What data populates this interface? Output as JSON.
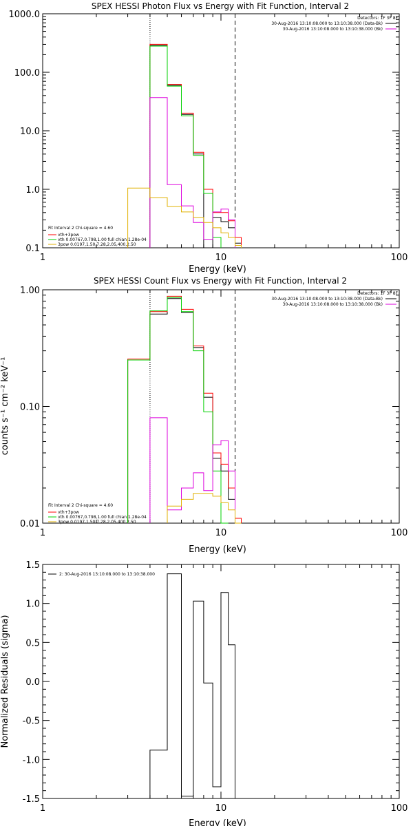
{
  "colors": {
    "black": "#000000",
    "red": "#ff0000",
    "green": "#00d000",
    "magenta": "#dd00dd",
    "yellow": "#e0b000"
  },
  "chart_data": [
    {
      "type": "line",
      "title": "SPEX HESSI Photon Flux vs Energy with Fit Function, Interval 2",
      "xlabel": "Energy (keV)",
      "ylabel": "",
      "xscale": "log",
      "yscale": "log",
      "xlim": [
        1,
        100
      ],
      "ylim": [
        0.1,
        1000
      ],
      "xticks": [
        "1",
        "10",
        "100"
      ],
      "yticks": [
        "1000.0",
        "100.0",
        "10.0",
        "1.0",
        "0.1"
      ],
      "detectors": "Detectors: 1F 3F 8F",
      "time_lines": [
        {
          "text": "30-Aug-2016 13:10:08.000 to 13:10:38.000 (Data-Bk)",
          "color": "black"
        },
        {
          "text": "30-Aug-2016 13:10:08.000 to 13:10:38.000 (Bk)",
          "color": "magenta"
        }
      ],
      "fit_header": "Fit Interval  2   Chi-square = 4.60",
      "legend": [
        {
          "text": "vth+3pow",
          "color": "red"
        },
        {
          "text": "vth 0.00767,0.798,1.00  full chian 1.28e-04",
          "color": "green"
        },
        {
          "text": "3pow 0.0197,1.50,7.28,2.05,400,2.50",
          "color": "yellow"
        }
      ],
      "vlines": [
        {
          "x": 4.0,
          "style": "dotted"
        },
        {
          "x": 12.0,
          "style": "dashed"
        }
      ],
      "edges": [
        3,
        4,
        5,
        6,
        7,
        8,
        9,
        10,
        11,
        12,
        13
      ],
      "series": [
        {
          "color": "black",
          "values": [
            null,
            290,
            60,
            19,
            4.0,
            null,
            0.33,
            0.28,
            0.22,
            0.12
          ]
        },
        {
          "color": "red",
          "values": [
            null,
            300,
            62,
            20,
            4.3,
            1.0,
            0.4,
            0.4,
            0.29,
            0.15,
            0.11
          ]
        },
        {
          "color": "green",
          "values": [
            null,
            280,
            58,
            18,
            3.8,
            0.85,
            0.15
          ]
        },
        {
          "color": "magenta",
          "values": [
            null,
            37,
            1.2,
            0.52,
            0.27,
            0.14,
            0.41,
            0.46,
            0.3
          ]
        },
        {
          "color": "yellow",
          "values": [
            1.05,
            0.72,
            0.51,
            0.41,
            0.33,
            0.27,
            0.22,
            0.18,
            0.15,
            0.11
          ]
        }
      ]
    },
    {
      "type": "line",
      "title": "SPEX HESSI Count Flux vs Energy with Fit Function, Interval 2",
      "xlabel": "Energy (keV)",
      "ylabel": "counts s⁻¹ cm⁻² keV⁻¹",
      "xscale": "log",
      "yscale": "log",
      "xlim": [
        1,
        100
      ],
      "ylim": [
        0.01,
        1.0
      ],
      "xticks": [
        "1",
        "10",
        "100"
      ],
      "yticks": [
        "1.00",
        "0.10",
        "0.01"
      ],
      "detectors": "Detectors: 1F 3F 8F",
      "time_lines": [
        {
          "text": "30-Aug-2016 13:10:08.000 to 13:10:38.000 (Data-Bk)",
          "color": "black"
        },
        {
          "text": "30-Aug-2016 13:10:08.000 to 13:10:38.000 (Bk)",
          "color": "magenta"
        }
      ],
      "fit_header": "Fit Interval  2   Chi-square = 4.60",
      "legend": [
        {
          "text": "vth+3pow",
          "color": "red"
        },
        {
          "text": "vth 0.00767,0.798,1.00  full chian 1.28e-04",
          "color": "green"
        },
        {
          "text": "3pow 0.0197,1.50,7.28,2.05,400,2.50",
          "color": "yellow"
        }
      ],
      "vlines": [
        {
          "x": 4.0,
          "style": "dotted"
        },
        {
          "x": 12.0,
          "style": "dashed"
        }
      ],
      "edges": [
        3,
        4,
        5,
        6,
        7,
        8,
        9,
        10,
        11,
        12,
        13
      ],
      "series": [
        {
          "color": "black",
          "values": [
            0.25,
            0.62,
            0.84,
            0.64,
            0.32,
            0.12,
            0.036,
            0.028,
            0.016,
            0.01
          ]
        },
        {
          "color": "red",
          "values": [
            0.255,
            0.65,
            0.88,
            0.68,
            0.33,
            0.13,
            0.04,
            0.032,
            0.02,
            0.011
          ]
        },
        {
          "color": "green",
          "values": [
            0.25,
            0.66,
            0.86,
            0.65,
            0.3,
            0.09,
            0.028,
            0.01
          ]
        },
        {
          "color": "magenta",
          "values": [
            null,
            0.08,
            0.013,
            0.02,
            0.027,
            0.019,
            0.047,
            0.051,
            0.028
          ]
        },
        {
          "color": "yellow",
          "values": [
            null,
            null,
            0.014,
            0.016,
            0.018,
            0.018,
            0.017,
            0.015,
            0.013,
            0.01
          ]
        }
      ]
    },
    {
      "type": "line",
      "title": "",
      "xlabel": "Energy (keV)",
      "ylabel": "Normalized Residuals (sigma)",
      "xscale": "log",
      "yscale": "linear",
      "xlim": [
        1,
        100
      ],
      "ylim": [
        -1.5,
        1.5
      ],
      "xticks": [
        "1",
        "10",
        "100"
      ],
      "yticks": [
        "1.5",
        "1.0",
        "0.5",
        "0.0",
        "-0.5",
        "-1.0",
        "-1.5"
      ],
      "legend": [
        {
          "text": "2: 30-Aug-2016 13:10:08.000 to 13:10:38.000",
          "color": "black"
        }
      ],
      "edges": [
        4,
        5,
        6,
        7,
        8,
        9,
        10,
        11,
        12
      ],
      "series": [
        {
          "color": "black",
          "values": [
            -0.88,
            1.38,
            -1.47,
            1.03,
            -0.02,
            -1.35,
            1.14,
            0.47
          ]
        }
      ]
    }
  ]
}
